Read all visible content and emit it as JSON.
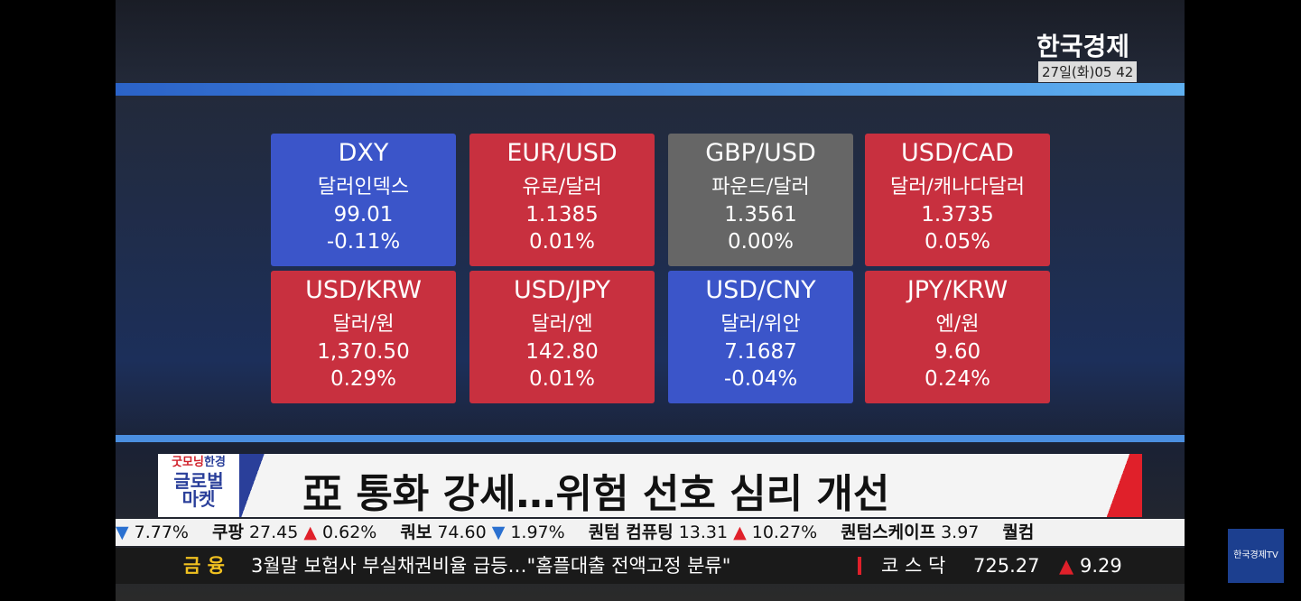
{
  "header": {
    "logo": "한국경제",
    "time": "27일(화)05 42"
  },
  "tiles": [
    {
      "code": "DXY",
      "name": "달러인덱스",
      "value": "99.01",
      "change": "-0.11%",
      "color": "#3b55c9"
    },
    {
      "code": "EUR/USD",
      "name": "유로/달러",
      "value": "1.1385",
      "change": "0.01%",
      "color": "#c8303f"
    },
    {
      "code": "GBP/USD",
      "name": "파운드/달러",
      "value": "1.3561",
      "change": "0.00%",
      "color": "#666666"
    },
    {
      "code": "USD/CAD",
      "name": "달러/캐나다달러",
      "value": "1.3735",
      "change": "0.05%",
      "color": "#c8303f"
    },
    {
      "code": "USD/KRW",
      "name": "달러/원",
      "value": "1,370.50",
      "change": "0.29%",
      "color": "#c8303f"
    },
    {
      "code": "USD/JPY",
      "name": "달러/엔",
      "value": "142.80",
      "change": "0.01%",
      "color": "#c8303f"
    },
    {
      "code": "USD/CNY",
      "name": "달러/위안",
      "value": "7.1687",
      "change": "-0.04%",
      "color": "#3b55c9"
    },
    {
      "code": "JPY/KRW",
      "name": "엔/원",
      "value": "9.60",
      "change": "0.24%",
      "color": "#c8303f"
    }
  ],
  "program": {
    "line1a": "굿모닝",
    "line1b": "한경",
    "line2": "글로벌",
    "line3": "마켓"
  },
  "headline": "亞 통화 강세…위험 선호 심리 개선",
  "ticker": [
    {
      "name": "",
      "price": "",
      "arrow": "▼",
      "change": "7.77%"
    },
    {
      "name": "쿠팡",
      "price": "27.45",
      "arrow": "▲",
      "change": "0.62%"
    },
    {
      "name": "쿼보",
      "price": "74.60",
      "arrow": "▼",
      "change": "1.97%"
    },
    {
      "name": "퀀텀 컴퓨팅",
      "price": "13.31",
      "arrow": "▲",
      "change": "10.27%"
    },
    {
      "name": "퀀텀스케이프",
      "price": "3.97",
      "arrow": "",
      "change": ""
    },
    {
      "name": "퀄컴",
      "price": "",
      "arrow": "",
      "change": ""
    }
  ],
  "news": {
    "section": "금 융",
    "text": "3월말 보험사 부실채권비율 급등…\"홈플대출 전액고정 분류\""
  },
  "index": {
    "name": "코 스 닥",
    "value": "725.27",
    "arrow": "▲",
    "change": "9.29"
  },
  "channel": "한국경제TV"
}
